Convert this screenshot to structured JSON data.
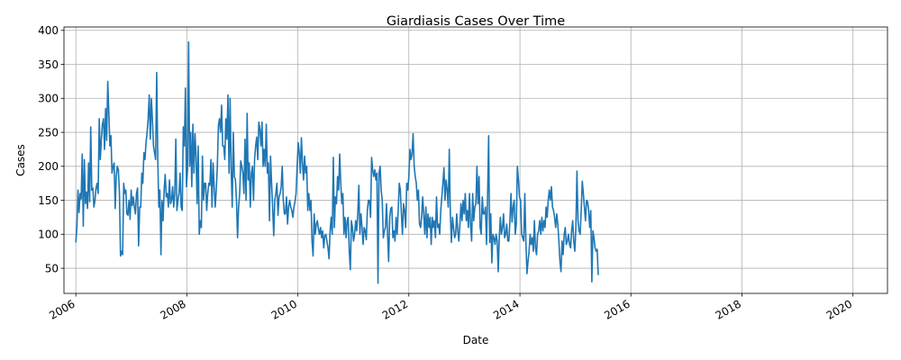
{
  "chart_data": {
    "type": "line",
    "title": "Giardiasis Cases Over Time",
    "xlabel": "Date",
    "ylabel": "Cases",
    "xlim": [
      "2005-10-15",
      "2020-08-15"
    ],
    "ylim": [
      13,
      405
    ],
    "x_ticks": [
      "2006",
      "2008",
      "2010",
      "2012",
      "2014",
      "2016",
      "2018",
      "2020"
    ],
    "y_ticks": [
      50,
      100,
      150,
      200,
      250,
      300,
      350,
      400
    ],
    "grid": true,
    "colors": {
      "line": "#1f77b4"
    },
    "series": [
      {
        "x_start": "2006-01",
        "frequency": "weekly",
        "values": [
          88,
          110,
          165,
          132,
          160,
          152,
          218,
          112,
          210,
          145,
          162,
          138,
          205,
          148,
          258,
          165,
          168,
          140,
          150,
          168,
          175,
          160,
          270,
          210,
          240,
          262,
          270,
          225,
          285,
          238,
          325,
          280,
          230,
          245,
          190,
          200,
          205,
          138,
          185,
          200,
          195,
          160,
          68,
          75,
          70,
          175,
          160,
          165,
          130,
          128,
          150,
          122,
          165,
          142,
          155,
          140,
          130,
          160,
          168,
          83,
          140,
          140,
          190,
          175,
          220,
          210,
          235,
          250,
          270,
          305,
          240,
          300,
          268,
          230,
          220,
          210,
          338,
          212,
          140,
          165,
          70,
          150,
          120,
          165,
          188,
          155,
          160,
          140,
          180,
          145,
          150,
          170,
          140,
          160,
          240,
          135,
          150,
          160,
          190,
          140,
          135,
          258,
          230,
          315,
          170,
          195,
          383,
          200,
          250,
          170,
          262,
          190,
          248,
          215,
          145,
          230,
          100,
          120,
          110,
          215,
          150,
          175,
          175,
          135,
          160,
          175,
          172,
          210,
          140,
          205,
          170,
          140,
          165,
          200,
          260,
          270,
          250,
          290,
          230,
          230,
          210,
          270,
          240,
          305,
          190,
          300,
          195,
          140,
          250,
          185,
          180,
          150,
          95,
          140,
          160,
          208,
          200,
          190,
          160,
          240,
          150,
          278,
          180,
          205,
          140,
          190,
          200,
          150,
          210,
          230,
          243,
          210,
          265,
          255,
          230,
          265,
          200,
          225,
          200,
          262,
          190,
          205,
          120,
          215,
          175,
          140,
          98,
          150,
          160,
          175,
          128,
          155,
          160,
          170,
          200,
          150,
          130,
          130,
          155,
          115,
          140,
          150,
          140,
          135,
          125,
          140,
          148,
          160,
          200,
          235,
          220,
          190,
          242,
          205,
          180,
          215,
          190,
          200,
          135,
          160,
          135,
          150,
          90,
          68,
          130,
          100,
          115,
          120,
          108,
          100,
          110,
          95,
          105,
          80,
          98,
          100,
          90,
          80,
          64,
          105,
          125,
          100,
          213,
          110,
          155,
          145,
          185,
          165,
          218,
          175,
          145,
          160,
          100,
          125,
          95,
          120,
          125,
          75,
          48,
          120,
          110,
          90,
          100,
          120,
          105,
          130,
          172,
          100,
          130,
          110,
          85,
          110,
          105,
          92,
          135,
          150,
          150,
          125,
          213,
          195,
          185,
          195,
          180,
          190,
          28,
          190,
          200,
          165,
          150,
          95,
          105,
          110,
          145,
          100,
          60,
          125,
          138,
          140,
          95,
          105,
          90,
          125,
          100,
          135,
          175,
          165,
          130,
          100,
          145,
          135,
          110,
          175,
          165,
          185,
          225,
          210,
          218,
          248,
          200,
          185,
          175,
          150,
          165,
          115,
          110,
          125,
          155,
          130,
          100,
          140,
          95,
          130,
          110,
          125,
          85,
          125,
          110,
          120,
          95,
          155,
          110,
          115,
          100,
          135,
          155,
          175,
          198,
          150,
          180,
          165,
          140,
          225,
          130,
          88,
          125,
          110,
          95,
          100,
          130,
          105,
          90,
          115,
          145,
          120,
          150,
          130,
          160,
          120,
          135,
          110,
          160,
          115,
          90,
          160,
          120,
          140,
          145,
          200,
          145,
          185,
          110,
          100,
          155,
          130,
          130,
          140,
          85,
          155,
          245,
          88,
          130,
          58,
          100,
          95,
          85,
          100,
          90,
          45,
          95,
          125,
          100,
          110,
          130,
          95,
          100,
          115,
          90,
          90,
          120,
          160,
          118,
          140,
          150,
          100,
          115,
          200,
          180,
          155,
          150,
          100,
          95,
          90,
          160,
          90,
          42,
          60,
          75,
          100,
          85,
          95,
          75,
          120,
          80,
          70,
          100,
          105,
          120,
          100,
          125,
          105,
          120,
          110,
          140,
          125,
          150,
          165,
          150,
          170,
          140,
          135,
          125,
          110,
          130,
          115,
          90,
          60,
          45,
          90,
          70,
          100,
          110,
          85,
          90,
          100,
          85,
          80,
          105,
          120,
          90,
          75,
          110,
          193,
          120,
          105,
          100,
          135,
          178,
          160,
          140,
          120,
          150,
          148,
          135,
          110,
          135,
          30,
          105,
          95,
          80,
          75,
          78,
          40
        ]
      }
    ]
  }
}
